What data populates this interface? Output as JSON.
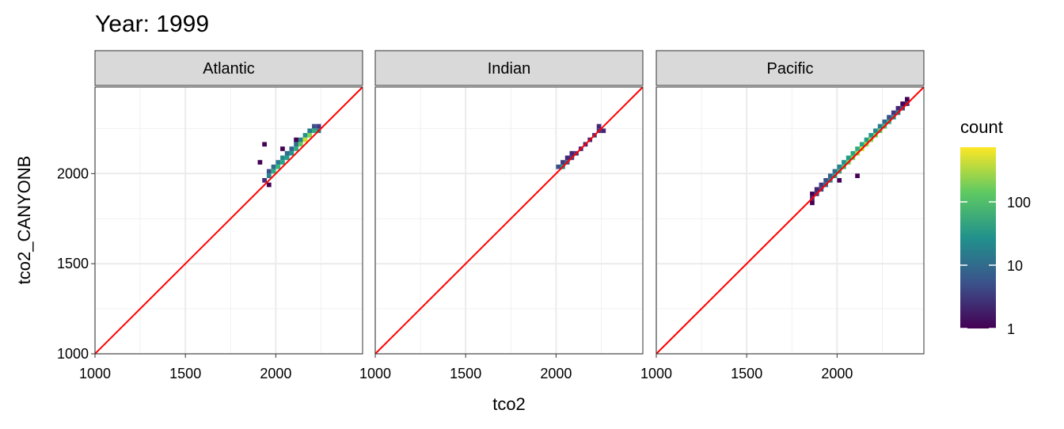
{
  "chart_data": {
    "type": "bin2d",
    "title": "Year: 1999",
    "x_label": "tco2",
    "y_label": "tco2_CANYONB",
    "xlim": [
      1000,
      2480
    ],
    "ylim": [
      1000,
      2480
    ],
    "xticks": [
      1000,
      1500,
      2000
    ],
    "yticks": [
      1000,
      1500,
      2000
    ],
    "minor_ticks": [
      1250,
      1750,
      2250
    ],
    "grid": true,
    "binwidth": 25,
    "identity_line": true,
    "identity_color": "#ff0000",
    "colormap": "viridis",
    "color_log_scale": true,
    "legend": {
      "title": "count",
      "lim": [
        1,
        730
      ],
      "ticks": [
        1,
        10,
        100
      ]
    },
    "facets": [
      {
        "name": "Atlantic",
        "x": [
          1937.5,
          1962.5,
          1962.5,
          1987.5,
          1987.5,
          2012.5,
          2012.5,
          2037.5,
          2037.5,
          2062.5,
          2062.5,
          2087.5,
          2087.5,
          2112.5,
          2112.5,
          2137.5,
          2137.5,
          2162.5,
          2162.5,
          2187.5,
          2187.5,
          2212.5,
          2212.5,
          2237.5,
          2237.5,
          1912.5,
          1937.5,
          1962.5,
          2037.5,
          2112.5
        ],
        "y": [
          1962.5,
          1987.5,
          2012.5,
          2012.5,
          2037.5,
          2037.5,
          2062.5,
          2062.5,
          2087.5,
          2087.5,
          2112.5,
          2112.5,
          2137.5,
          2137.5,
          2162.5,
          2162.5,
          2187.5,
          2187.5,
          2212.5,
          2212.5,
          2237.5,
          2237.5,
          2262.5,
          2237.5,
          2262.5,
          2062.5,
          2162.5,
          1937.5,
          2137.5,
          2187.5
        ],
        "count": [
          2,
          20,
          5,
          60,
          10,
          80,
          15,
          50,
          20,
          40,
          10,
          30,
          8,
          60,
          12,
          150,
          20,
          400,
          30,
          200,
          15,
          60,
          5,
          20,
          3,
          1,
          1,
          1,
          1,
          1
        ]
      },
      {
        "name": "Indian",
        "x": [
          2012.5,
          2037.5,
          2037.5,
          2062.5,
          2062.5,
          2087.5,
          2087.5,
          2112.5,
          2137.5,
          2162.5,
          2187.5,
          2212.5,
          2237.5,
          2262.5,
          2237.5
        ],
        "y": [
          2037.5,
          2037.5,
          2062.5,
          2062.5,
          2087.5,
          2087.5,
          2112.5,
          2112.5,
          2137.5,
          2162.5,
          2187.5,
          2212.5,
          2237.5,
          2237.5,
          2262.5
        ],
        "count": [
          5,
          30,
          3,
          8,
          2,
          4,
          2,
          3,
          2,
          2,
          2,
          3,
          3,
          2,
          2
        ]
      },
      {
        "name": "Pacific",
        "x": [
          1862.5,
          1887.5,
          1912.5,
          1937.5,
          1962.5,
          1987.5,
          2012.5,
          2037.5,
          2062.5,
          2087.5,
          2112.5,
          2137.5,
          2162.5,
          2187.5,
          2212.5,
          2237.5,
          2262.5,
          2287.5,
          2312.5,
          2337.5,
          2362.5,
          2387.5,
          1862.5,
          1887.5,
          1912.5,
          1937.5,
          1962.5,
          1987.5,
          2012.5,
          2037.5,
          2062.5,
          2087.5,
          2112.5,
          2137.5,
          2162.5,
          2187.5,
          2212.5,
          2237.5,
          2262.5,
          2287.5,
          2312.5,
          2337.5,
          2362.5,
          2387.5,
          2112.5,
          1862.5,
          2012.5
        ],
        "y": [
          1862.5,
          1887.5,
          1912.5,
          1937.5,
          1962.5,
          1987.5,
          2012.5,
          2037.5,
          2062.5,
          2087.5,
          2112.5,
          2137.5,
          2162.5,
          2187.5,
          2212.5,
          2237.5,
          2262.5,
          2287.5,
          2312.5,
          2337.5,
          2362.5,
          2387.5,
          1887.5,
          1912.5,
          1937.5,
          1962.5,
          1987.5,
          2012.5,
          2037.5,
          2062.5,
          2087.5,
          2112.5,
          2137.5,
          2162.5,
          2187.5,
          2212.5,
          2237.5,
          2262.5,
          2287.5,
          2312.5,
          2337.5,
          2362.5,
          2387.5,
          2412.5,
          1987.5,
          1837.5,
          1962.5
        ],
        "count": [
          2,
          3,
          5,
          10,
          20,
          40,
          60,
          100,
          150,
          200,
          300,
          400,
          300,
          250,
          200,
          150,
          100,
          60,
          30,
          15,
          5,
          2,
          1,
          2,
          3,
          5,
          8,
          10,
          20,
          30,
          40,
          50,
          60,
          50,
          40,
          30,
          20,
          15,
          10,
          5,
          3,
          2,
          1,
          1,
          1,
          1,
          1
        ]
      }
    ]
  }
}
